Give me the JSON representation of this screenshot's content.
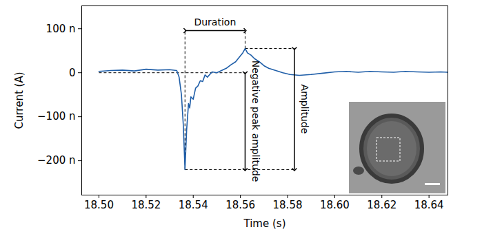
{
  "chart_data": {
    "type": "line",
    "x_label": "Time (s)",
    "y_label": "Current (A)",
    "annotations": [
      "Duration",
      "Negative peak amplitude",
      "Amplitude"
    ],
    "xlim": [
      18.4927,
      18.648
    ],
    "ylim": [
      -2.78e-07,
      1.52e-07
    ],
    "xticks": [
      {
        "value": 18.5,
        "label": "18.50"
      },
      {
        "value": 18.52,
        "label": "18.52"
      },
      {
        "value": 18.54,
        "label": "18.54"
      },
      {
        "value": 18.56,
        "label": "18.56"
      },
      {
        "value": 18.58,
        "label": "18.58"
      },
      {
        "value": 18.6,
        "label": "18.60"
      },
      {
        "value": 18.62,
        "label": "18.62"
      },
      {
        "value": 18.64,
        "label": "18.64"
      }
    ],
    "yticks": [
      {
        "value": -2e-07,
        "label": "−200 n"
      },
      {
        "value": -1e-07,
        "label": "−100 n"
      },
      0,
      {
        "value": 1e-07,
        "label": "100 n"
      }
    ],
    "x": [
      18.5,
      18.505,
      18.51,
      18.515,
      18.52,
      18.525,
      18.53,
      18.533,
      18.534,
      18.535,
      18.5358,
      18.5365,
      18.5372,
      18.538,
      18.5385,
      18.539,
      18.54,
      18.541,
      18.542,
      18.543,
      18.544,
      18.545,
      18.546,
      18.548,
      18.55,
      18.552,
      18.554,
      18.556,
      18.558,
      18.5595,
      18.561,
      18.562,
      18.563,
      18.5645,
      18.566,
      18.568,
      18.57,
      18.572,
      18.575,
      18.578,
      18.581,
      18.585,
      18.59,
      18.595,
      18.6,
      18.605,
      18.61,
      18.615,
      18.62,
      18.625,
      18.63,
      18.635,
      18.64,
      18.645,
      18.648
    ],
    "series": [
      {
        "name": "Current",
        "color": "#1f5ea8",
        "values": [
          3e-09,
          5e-09,
          6e-09,
          4e-09,
          8e-09,
          6e-09,
          7e-09,
          5e-09,
          -1e-08,
          -5e-08,
          -1.2e-07,
          -2.2e-07,
          -1.3e-07,
          -7e-08,
          -8e-08,
          -5.5e-08,
          -6e-08,
          -3.5e-08,
          -3e-08,
          -1.8e-08,
          -2e-08,
          -5e-09,
          -1e-08,
          2e-09,
          0,
          5e-09,
          1e-08,
          1.8e-08,
          2.5e-08,
          3.5e-08,
          4.5e-08,
          5.5e-08,
          4.5e-08,
          4e-08,
          3.2e-08,
          2.5e-08,
          1.6e-08,
          1e-08,
          5e-09,
          0,
          -4e-09,
          -6e-09,
          -4e-09,
          -1e-09,
          2e-09,
          3e-09,
          1e-09,
          3e-09,
          2e-09,
          1e-09,
          3e-09,
          2e-09,
          1e-09,
          2e-09,
          1e-09
        ]
      }
    ]
  }
}
